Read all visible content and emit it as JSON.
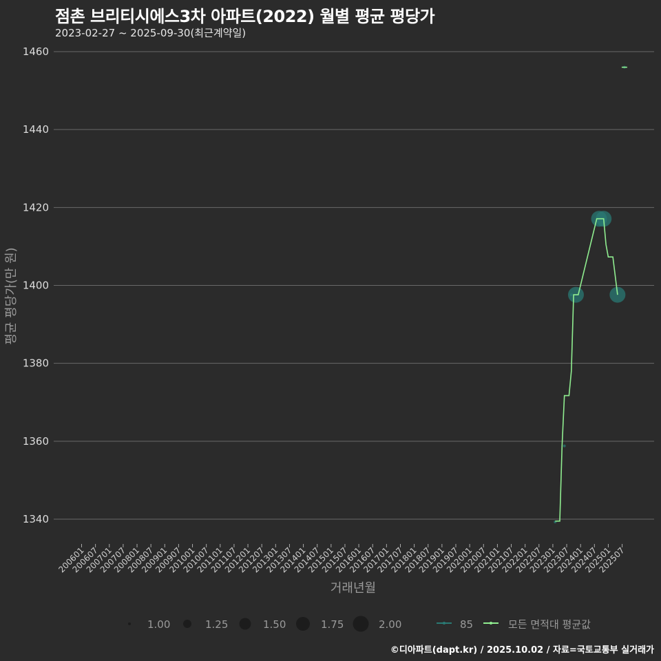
{
  "header": {
    "title": "점촌 브리티시에스3차 아파트(2022) 월별 평균 평당가",
    "subtitle": "2023-02-27 ~ 2025-09-30(최근계약일)"
  },
  "footer": {
    "credit": "©디아파트(dapt.kr) / 2025.10.02 / 자료=국토교통부 실거래가"
  },
  "colors": {
    "background": "#2b2b2b",
    "grid": "#6a6a6a",
    "area85": "#2a7a74",
    "average_line": "#90ee90"
  },
  "legend": {
    "size": [
      {
        "label": "1.00",
        "r": 2
      },
      {
        "label": "1.25",
        "r": 6
      },
      {
        "label": "1.50",
        "r": 8.5
      },
      {
        "label": "1.75",
        "r": 10
      },
      {
        "label": "2.00",
        "r": 11.5
      }
    ],
    "series": [
      {
        "label": "85",
        "color": "#2a7a74"
      },
      {
        "label": "모든 면적대 평균값",
        "color": "#90ee90"
      }
    ]
  },
  "chart_data": {
    "type": "line",
    "title": "점촌 브리티시에스3차 아파트(2022) 월별 평균 평당가",
    "subtitle": "2023-02-27 ~ 2025-09-30(최근계약일)",
    "xlabel": "거래년월",
    "ylabel": "평균 평당가(만 원)",
    "ylim": [
      1335,
      1462
    ],
    "yticks": [
      1340,
      1360,
      1380,
      1400,
      1420,
      1440,
      1460
    ],
    "xticks": [
      "200601",
      "200607",
      "200701",
      "200707",
      "200801",
      "200807",
      "200901",
      "200907",
      "201001",
      "201007",
      "201101",
      "201107",
      "201201",
      "201207",
      "201301",
      "201307",
      "201401",
      "201407",
      "201501",
      "201507",
      "201601",
      "201607",
      "201701",
      "201707",
      "201801",
      "201807",
      "201901",
      "201907",
      "202001",
      "202007",
      "202101",
      "202107",
      "202201",
      "202207",
      "202301",
      "202307",
      "202401",
      "202407",
      "202501",
      "202507"
    ],
    "grid": true,
    "legend_position": "bottom",
    "series": [
      {
        "name": "85",
        "type": "scatter",
        "points": [
          {
            "x": "202302",
            "y": 1339.3,
            "size": 1.0
          },
          {
            "x": "202306",
            "y": 1358.8,
            "size": 1.0
          },
          {
            "x": "202309",
            "y": 1397.6,
            "size": 1.0
          },
          {
            "x": "202311",
            "y": 1397.6,
            "size": 2.0
          },
          {
            "x": "202409",
            "y": 1417.1,
            "size": 2.0
          },
          {
            "x": "202411",
            "y": 1417.1,
            "size": 2.0
          },
          {
            "x": "202505",
            "y": 1397.6,
            "size": 2.0
          },
          {
            "x": "202508",
            "y": 1456.0,
            "size": 1.0
          }
        ]
      },
      {
        "name": "모든 면적대 평균값",
        "type": "line",
        "points": [
          {
            "x": "202302",
            "y": 1339.5
          },
          {
            "x": "202304",
            "y": 1339.5
          },
          {
            "x": "202305",
            "y": 1358.8
          },
          {
            "x": "202306",
            "y": 1371.7
          },
          {
            "x": "202308",
            "y": 1371.7
          },
          {
            "x": "202309",
            "y": 1378.0
          },
          {
            "x": "202310",
            "y": 1397.6
          },
          {
            "x": "202312",
            "y": 1397.6
          },
          {
            "x": "202408",
            "y": 1417.1
          },
          {
            "x": "202411",
            "y": 1417.1
          },
          {
            "x": "202412",
            "y": 1410.5
          },
          {
            "x": "202501",
            "y": 1407.3
          },
          {
            "x": "202503",
            "y": 1407.3
          },
          {
            "x": "202505",
            "y": 1397.6
          },
          {
            "x": "202508",
            "y": 1456.0
          }
        ]
      }
    ]
  }
}
